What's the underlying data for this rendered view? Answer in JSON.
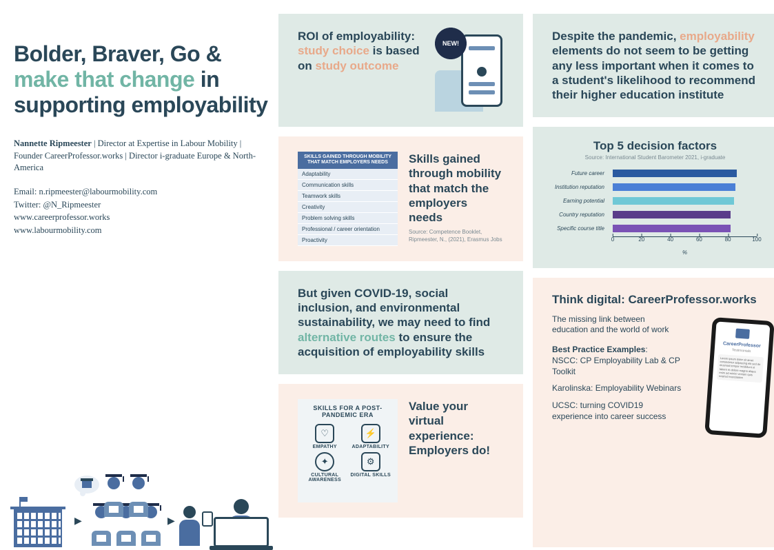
{
  "title": {
    "part1": "Bolder, Braver, Go & ",
    "accent": "make that change",
    "part2": " in supporting employability"
  },
  "author": {
    "name": "Nannette Ripmeester",
    "roles": " | Director at Expertise in Labour Mobility | Founder CareerProfessor.works | Director i-graduate Europe & North-America"
  },
  "contact": {
    "email": "Email: n.ripmeester@labourmobility.com",
    "twitter": "Twitter: @N_Ripmeester",
    "site1": "www.careerprofessor.works",
    "site2": "www.labourmobility.com"
  },
  "roi": {
    "pre": "ROI of employability: ",
    "accent1": "study choice",
    "mid": " is based on ",
    "accent2": "study outcome",
    "badge": "NEW!"
  },
  "skills": {
    "title": "Skills gained through mobility that match the employers needs",
    "source": "Source: Competence Booklet, Ripmeester, N., (2021), Erasmus Jobs",
    "table_header": "SKILLS GAINED THROUGH MOBILITY THAT MATCH EMPLOYERS NEEDS",
    "rows": [
      "Adaptability",
      "Communication skills",
      "Teamwork skills",
      "Creativity",
      "Problem solving skills",
      "Professional / career orientation",
      "Proactivity"
    ]
  },
  "covid": {
    "pre": "But given COVID-19, social inclusion, and environmental sustainability, we may need to find ",
    "accent": "alternative routes",
    "post": " to ensure the acquisition of employability skills"
  },
  "pandemic": {
    "title": "Value your virtual experience: Employers do!",
    "graphic_title": "SKILLS FOR A POST-PANDEMIC ERA",
    "cells": [
      "EMPATHY",
      "ADAPTABILITY",
      "CULTURAL AWARENESS",
      "DIGITAL SKILLS"
    ],
    "icons": [
      "♡",
      "⚡",
      "✦",
      "⚙"
    ]
  },
  "despite": {
    "pre": "Despite the pandemic, ",
    "accent": "employability",
    "post": " elements do not seem to be getting any less important when it comes to a student's likelihood to recommend their higher education institute"
  },
  "chart": {
    "title": "Top 5 decision factors",
    "source": "Source: International Student Barometer 2021, i-graduate",
    "x_label": "%",
    "xlim": [
      0,
      100
    ],
    "tick_step": 20,
    "background": "#dfeae6",
    "bars": [
      {
        "label": "Future career",
        "value": 86,
        "color": "#2a5aa0"
      },
      {
        "label": "Institution reputation",
        "value": 85,
        "color": "#4a7fd6"
      },
      {
        "label": "Earning potential",
        "value": 84,
        "color": "#6fc8d6"
      },
      {
        "label": "Country reputation",
        "value": 82,
        "color": "#5a3d8a"
      },
      {
        "label": "Specific course title",
        "value": 82,
        "color": "#7a52b5"
      }
    ]
  },
  "digital": {
    "title": "Think digital: CareerProfessor.works",
    "sub": "The missing link between education and the world of work",
    "bp_header": "Best Practice Examples",
    "items": [
      "NSCC: CP Employability Lab & CP Toolkit",
      "Karolinska: Employability Webinars",
      "UCSC: turning COVID19 experience into career success"
    ],
    "phone_logo": "CareerProfessor",
    "phone_sub": "Testimonials",
    "phone_text": "Lorem ipsum dolor sit amet consectetur adipiscing elit sed do eiusmod tempor incididunt ut labore et dolore magna aliqua enim ad minim veniam quis nostrud exercitation"
  },
  "colors": {
    "heading": "#2a4758",
    "accent_teal": "#71b5a5",
    "accent_orange": "#e8a98a",
    "mint_bg": "#dfeae6",
    "peach_bg": "#fbeee7"
  }
}
